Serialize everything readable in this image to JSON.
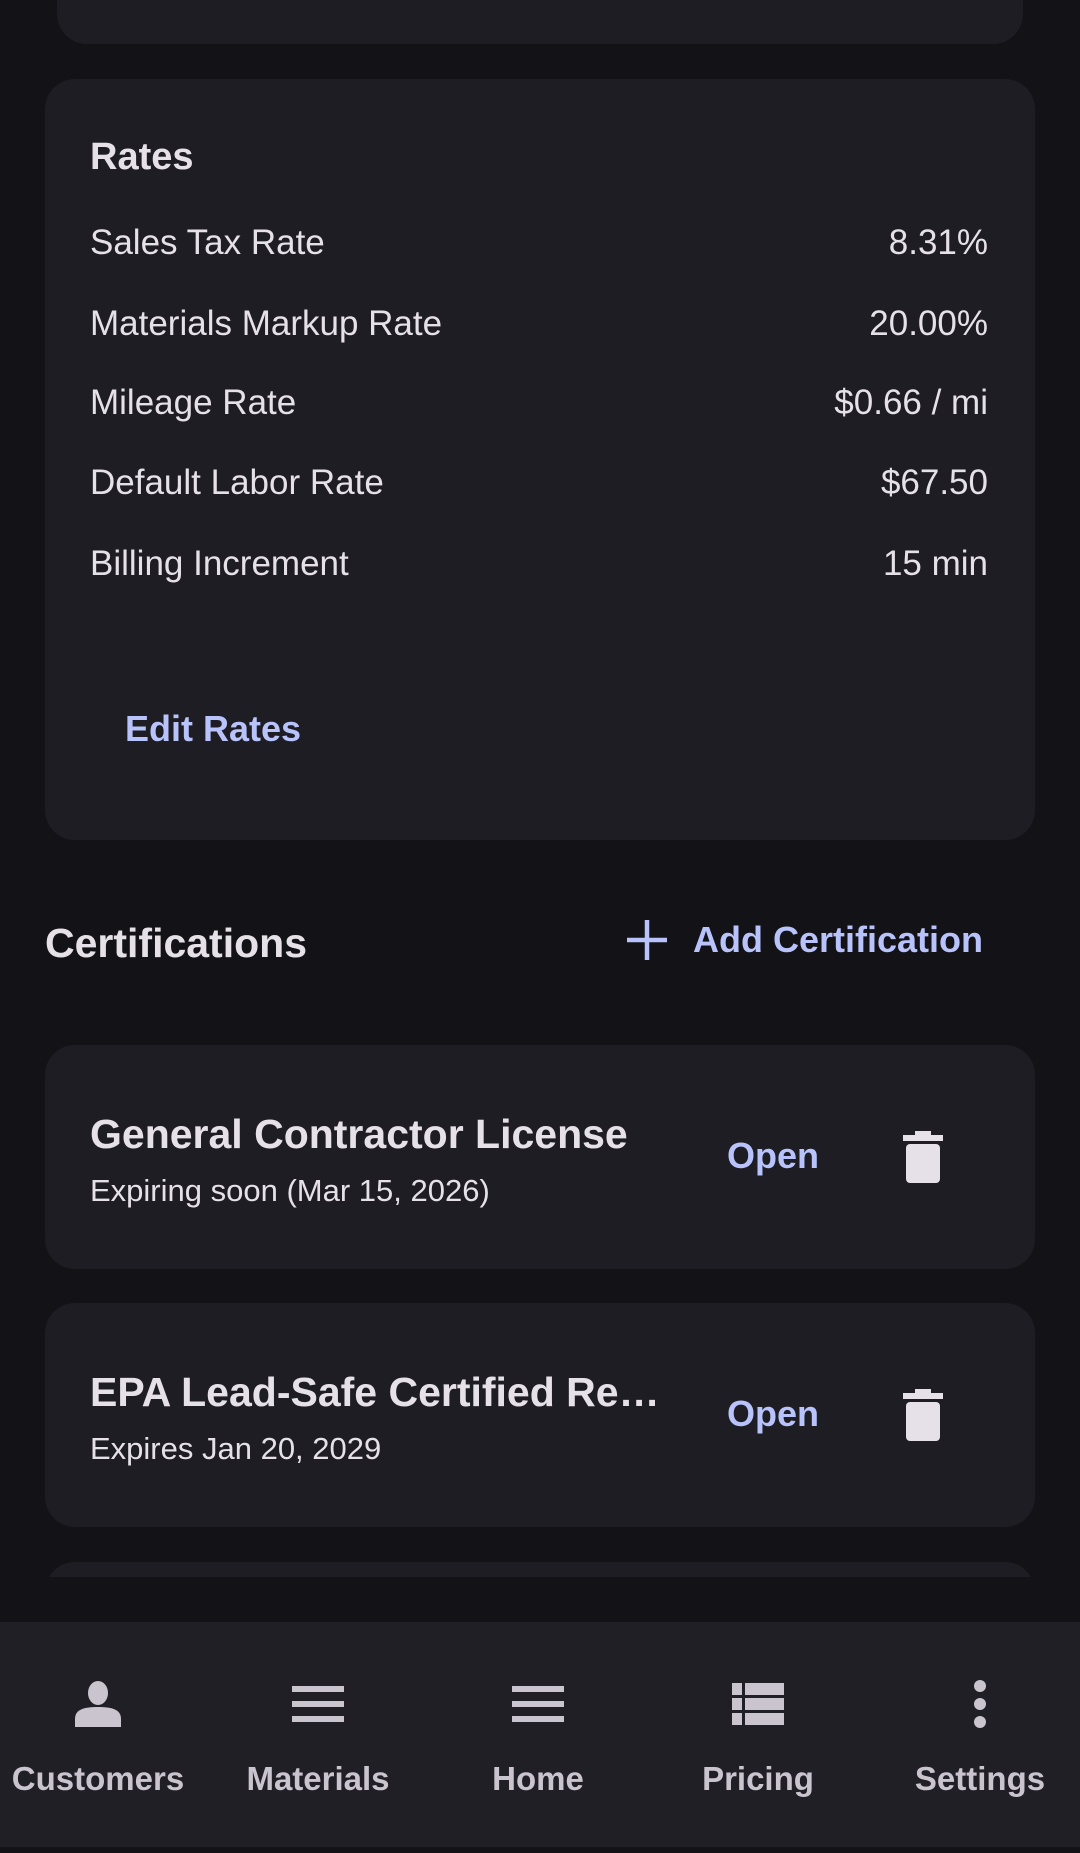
{
  "rates": {
    "title": "Rates",
    "rows": [
      {
        "label": "Sales Tax Rate",
        "value": "8.31%"
      },
      {
        "label": "Materials Markup Rate",
        "value": "20.00%"
      },
      {
        "label": "Mileage Rate",
        "value": "$0.66 / mi"
      },
      {
        "label": "Default Labor Rate",
        "value": "$67.50"
      },
      {
        "label": "Billing Increment",
        "value": "15 min"
      }
    ],
    "edit_label": "Edit Rates"
  },
  "certifications": {
    "title": "Certifications",
    "add_label": "Add Certification",
    "items": [
      {
        "name": "General Contractor License",
        "status": "Expiring soon (Mar 15, 2026)",
        "open_label": "Open"
      },
      {
        "name": "EPA Lead-Safe Certified Renovator",
        "status": "Expires Jan 20, 2029",
        "open_label": "Open"
      }
    ]
  },
  "nav": {
    "items": [
      {
        "label": "Customers",
        "icon": "person-icon"
      },
      {
        "label": "Materials",
        "icon": "menu-icon"
      },
      {
        "label": "Home",
        "icon": "menu-icon"
      },
      {
        "label": "Pricing",
        "icon": "list-icon"
      },
      {
        "label": "Settings",
        "icon": "more-vert-icon"
      }
    ]
  },
  "colors": {
    "background": "#131217",
    "card": "#1e1d23",
    "accent": "#b9c3fb",
    "nav": "#211f26"
  }
}
